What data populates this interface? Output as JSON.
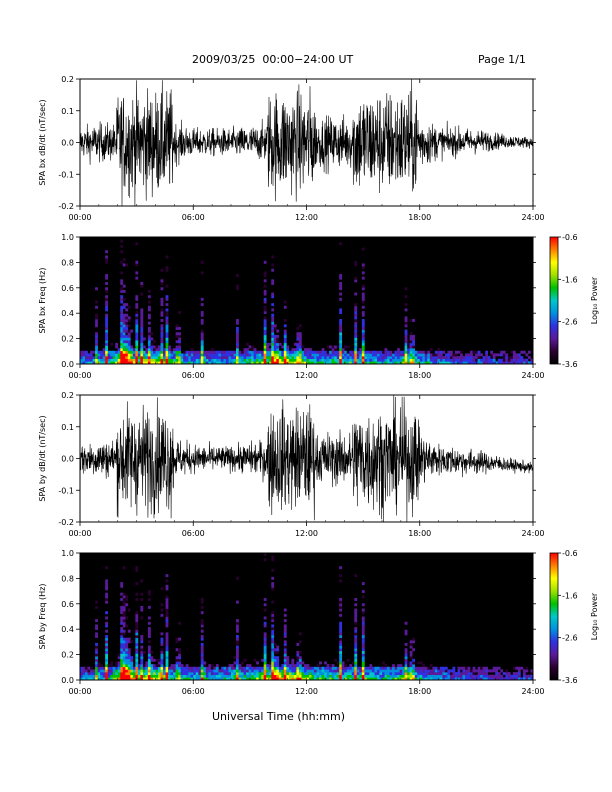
{
  "page": {
    "title": "2009/03/25  00:00−24:00 UT",
    "page_label": "Page 1/1",
    "xlabel": "Universal Time (hh:mm)"
  },
  "colors": {
    "waveform": "#000000",
    "spectrogram_background": "#000000",
    "colormap": [
      "#000000",
      "#2a0030",
      "#5a1a9a",
      "#3030e0",
      "#0090e0",
      "#00c8c8",
      "#00c000",
      "#a0e000",
      "#ffff00",
      "#ff8000",
      "#ff0000"
    ]
  },
  "chart_data": [
    {
      "type": "line",
      "name": "bx-waveform",
      "ylabel": "SPA bx dB/dt (nT/sec)",
      "xlim": [
        0,
        24
      ],
      "ylim": [
        -0.2,
        0.2
      ],
      "x_ticks": [
        "00:00",
        "06:00",
        "12:00",
        "18:00",
        "24:00"
      ],
      "y_ticks": [
        "-0.2",
        "-0.1",
        "0.0",
        "0.1",
        "0.2"
      ],
      "envelope": {
        "t": [
          0,
          1,
          1.9,
          2.0,
          4.9,
          5.0,
          6,
          8,
          9.5,
          9.9,
          10.0,
          12.4,
          12.5,
          13,
          14.4,
          14.5,
          17.9,
          18.0,
          19,
          21,
          22.5,
          24
        ],
        "amplitude": [
          0.09,
          0.11,
          0.11,
          0.3,
          0.3,
          0.12,
          0.08,
          0.08,
          0.1,
          0.13,
          0.3,
          0.3,
          0.14,
          0.15,
          0.15,
          0.3,
          0.3,
          0.16,
          0.09,
          0.07,
          0.04,
          0.03
        ]
      },
      "bias": {
        "t": [
          0,
          18,
          22,
          24
        ],
        "value": [
          0.0,
          0.0,
          0.005,
          0.0
        ]
      }
    },
    {
      "type": "heatmap",
      "name": "bx-spectrogram",
      "ylabel": "SPA bx Freq (Hz)",
      "xlim": [
        0,
        24
      ],
      "ylim": [
        0,
        1.0
      ],
      "x_ticks": [
        "00:00",
        "06:00",
        "12:00",
        "18:00",
        "24:00"
      ],
      "y_ticks": [
        "0.0",
        "0.2",
        "0.4",
        "0.6",
        "0.8",
        "1.0"
      ],
      "colorbar": {
        "label": "Log₁₀ Power",
        "ticks": [
          "-0.6",
          "-1.6",
          "-2.6",
          "-3.6"
        ],
        "range": [
          -3.6,
          -0.6
        ]
      },
      "activity": {
        "t": [
          0,
          1.5,
          2.2,
          2.6,
          3.0,
          4.0,
          5.0,
          6.0,
          8.0,
          9.5,
          10.5,
          11.5,
          12.5,
          14.0,
          16.0,
          17.5,
          19.0,
          21.0,
          24.0
        ],
        "level": [
          0.35,
          0.5,
          0.95,
          0.8,
          0.7,
          0.8,
          0.55,
          0.45,
          0.45,
          0.65,
          0.8,
          0.7,
          0.55,
          0.55,
          0.5,
          0.6,
          0.4,
          0.3,
          0.25
        ]
      },
      "bursts_hours": [
        0.9,
        1.4,
        2.2,
        2.35,
        2.5,
        2.65,
        3.0,
        3.3,
        3.7,
        4.3,
        4.6,
        5.2,
        6.5,
        8.3,
        9.8,
        10.2,
        10.4,
        10.9,
        11.6,
        13.8,
        14.6,
        15.0,
        17.3,
        17.6
      ]
    },
    {
      "type": "line",
      "name": "by-waveform",
      "ylabel": "SPA by dB/dt (nT/sec)",
      "xlim": [
        0,
        24
      ],
      "ylim": [
        -0.2,
        0.2
      ],
      "x_ticks": [
        "00:00",
        "06:00",
        "12:00",
        "18:00",
        "24:00"
      ],
      "y_ticks": [
        "-0.2",
        "-0.1",
        "0.0",
        "0.1",
        "0.2"
      ],
      "envelope": {
        "t": [
          0,
          1,
          1.9,
          2.0,
          4.9,
          5.0,
          6,
          8,
          9.5,
          9.9,
          10.0,
          12.4,
          12.5,
          13,
          14.4,
          14.5,
          17.9,
          18.0,
          19,
          21,
          22.5,
          24
        ],
        "amplitude": [
          0.09,
          0.11,
          0.11,
          0.3,
          0.3,
          0.12,
          0.08,
          0.07,
          0.1,
          0.13,
          0.3,
          0.3,
          0.14,
          0.15,
          0.15,
          0.3,
          0.3,
          0.16,
          0.09,
          0.07,
          0.04,
          0.03
        ]
      },
      "bias": {
        "t": [
          0,
          18,
          22,
          24
        ],
        "value": [
          0.0,
          0.0,
          -0.015,
          -0.03
        ]
      }
    },
    {
      "type": "heatmap",
      "name": "by-spectrogram",
      "ylabel": "SPA by Freq (Hz)",
      "xlim": [
        0,
        24
      ],
      "ylim": [
        0,
        1.0
      ],
      "x_ticks": [
        "00:00",
        "06:00",
        "12:00",
        "18:00",
        "24:00"
      ],
      "y_ticks": [
        "0.0",
        "0.2",
        "0.4",
        "0.6",
        "0.8",
        "1.0"
      ],
      "colorbar": {
        "label": "Log₁₀ Power",
        "ticks": [
          "-0.6",
          "-1.6",
          "-2.6",
          "-3.6"
        ],
        "range": [
          -3.6,
          -0.6
        ]
      },
      "activity": {
        "t": [
          0,
          1.5,
          2.2,
          2.6,
          3.0,
          4.0,
          5.0,
          6.0,
          8.0,
          9.5,
          10.5,
          11.5,
          12.5,
          14.0,
          16.0,
          17.5,
          19.0,
          21.0,
          24.0
        ],
        "level": [
          0.35,
          0.55,
          0.95,
          0.85,
          0.7,
          0.8,
          0.6,
          0.5,
          0.5,
          0.7,
          0.85,
          0.75,
          0.6,
          0.6,
          0.55,
          0.6,
          0.4,
          0.3,
          0.25
        ]
      },
      "bursts_hours": [
        0.9,
        1.4,
        2.2,
        2.35,
        2.5,
        2.65,
        3.0,
        3.3,
        3.7,
        4.3,
        4.6,
        5.2,
        6.5,
        8.3,
        9.8,
        10.2,
        10.4,
        10.9,
        11.6,
        13.8,
        14.6,
        15.0,
        17.3,
        17.6
      ]
    }
  ]
}
